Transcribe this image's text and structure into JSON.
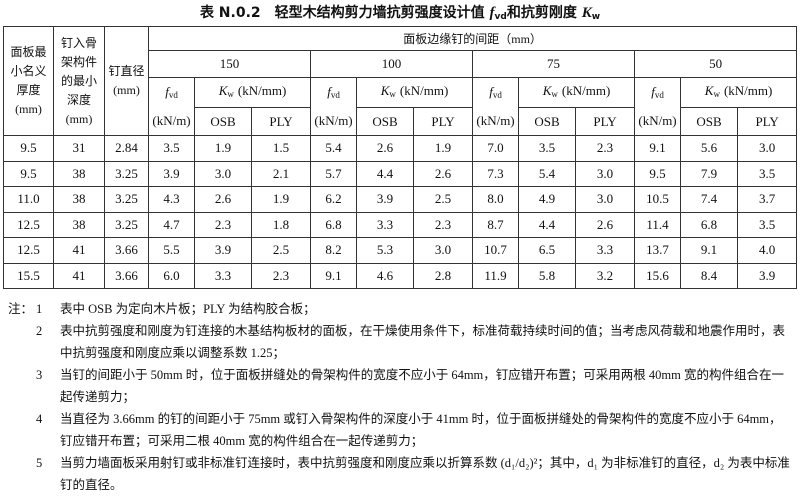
{
  "title": {
    "prefix": "表 N.0.2",
    "text": "轻型木结构剪力墙抗剪强度设计值 ",
    "f": "f",
    "f_sub": "vd",
    "mid": "和抗剪刚度 ",
    "k": "K",
    "k_sub": "w"
  },
  "table": {
    "head": {
      "thickness": "面板最小名义厚度(mm)",
      "depth": "钉入骨架构件的最小深度(mm)",
      "diameter": "钉直径(mm)",
      "spacing": "面板边缘钉的间距（mm）",
      "spacings": [
        "150",
        "100",
        "75",
        "50"
      ],
      "fvd": {
        "symbol": "f",
        "sub": "vd",
        "unit": "(kN/m)"
      },
      "kw": {
        "symbol": "K",
        "sub": "w",
        "unit": "(kN/mm)"
      },
      "osb": "OSB",
      "ply": "PLY"
    },
    "rows": [
      [
        "9.5",
        "31",
        "2.84",
        "3.5",
        "1.9",
        "1.5",
        "5.4",
        "2.6",
        "1.9",
        "7.0",
        "3.5",
        "2.3",
        "9.1",
        "5.6",
        "3.0"
      ],
      [
        "9.5",
        "38",
        "3.25",
        "3.9",
        "3.0",
        "2.1",
        "5.7",
        "4.4",
        "2.6",
        "7.3",
        "5.4",
        "3.0",
        "9.5",
        "7.9",
        "3.5"
      ],
      [
        "11.0",
        "38",
        "3.25",
        "4.3",
        "2.6",
        "1.9",
        "6.2",
        "3.9",
        "2.5",
        "8.0",
        "4.9",
        "3.0",
        "10.5",
        "7.4",
        "3.7"
      ],
      [
        "12.5",
        "38",
        "3.25",
        "4.7",
        "2.3",
        "1.8",
        "6.8",
        "3.3",
        "2.3",
        "8.7",
        "4.4",
        "2.6",
        "11.4",
        "6.8",
        "3.5"
      ],
      [
        "12.5",
        "41",
        "3.66",
        "5.5",
        "3.9",
        "2.5",
        "8.2",
        "5.3",
        "3.0",
        "10.7",
        "6.5",
        "3.3",
        "13.7",
        "9.1",
        "4.0"
      ],
      [
        "15.5",
        "41",
        "3.66",
        "6.0",
        "3.3",
        "2.3",
        "9.1",
        "4.6",
        "2.8",
        "11.9",
        "5.8",
        "3.2",
        "15.6",
        "8.4",
        "3.9"
      ]
    ]
  },
  "notes": {
    "label": "注：",
    "items": [
      {
        "number": "1",
        "text": "表中 OSB 为定向木片板；PLY 为结构胶合板；"
      },
      {
        "number": "2",
        "text": "表中抗剪强度和刚度为钉连接的木基结构板材的面板，在干燥使用条件下，标准荷载持续时间的值；当考虑风荷载和地震作用时，表中抗剪强度和刚度应乘以调整系数 1.25；"
      },
      {
        "number": "3",
        "text": "当钉的间距小于 50mm 时，位于面板拼缝处的骨架构件的宽度不应小于 64mm，钉应错开布置；可采用两根 40mm 宽的构件组合在一起传递剪力；"
      },
      {
        "number": "4",
        "text": "当直径为 3.66mm 的钉的间距小于 75mm 或钉入骨架构件的深度小于 41mm 时，位于面板拼缝处的骨架构件的宽度不应小于 64mm，钉应错开布置；可采用二根 40mm 宽的构件组合在一起传递剪力；"
      },
      {
        "number": "5",
        "text": "当剪力墙面板采用射钉或非标准钉连接时，表中抗剪强度和刚度应乘以折算系数 (d₁/d₂)²；其中，d₁ 为非标准钉的直径，d₂ 为表中标准钉的直径。"
      }
    ]
  }
}
